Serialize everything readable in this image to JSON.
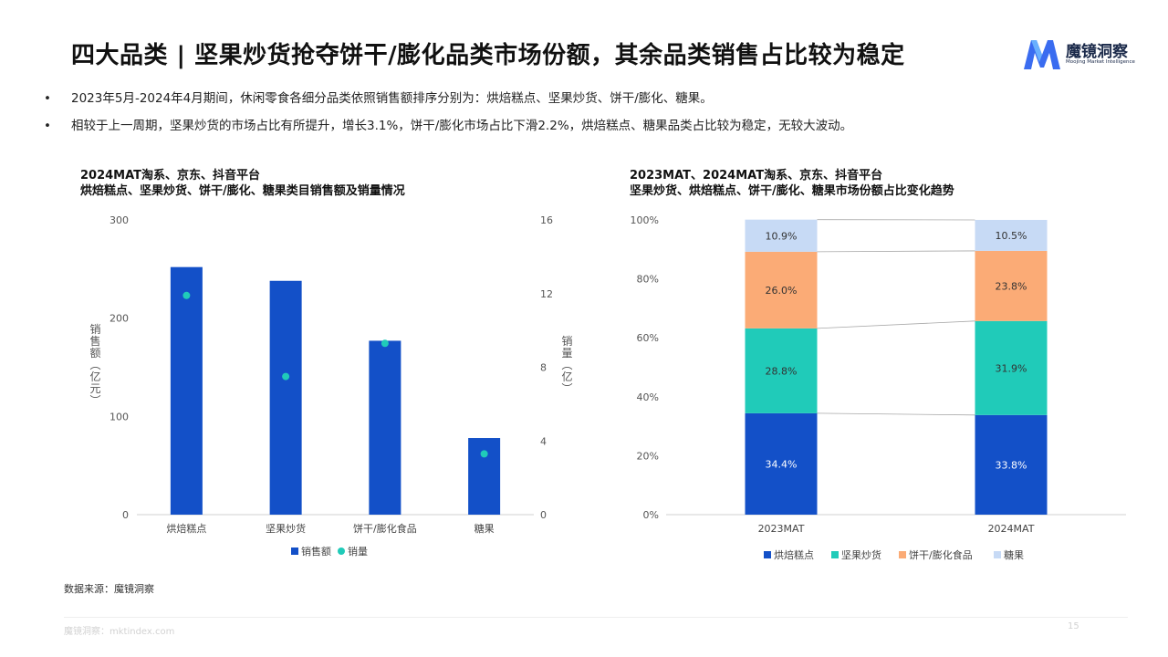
{
  "page": {
    "title": "四大品类 | 坚果炒货抢夺饼干/膨化品类市场份额，其余品类销售占比较为稳定",
    "logo_cn": "魔镜洞察",
    "logo_en": "Moojing Market Intelligence",
    "bullets": [
      "2023年5月-2024年4月期间，休闲零食各细分品类依照销售额排序分别为：烘焙糕点、坚果炒货、饼干/膨化、糖果。",
      "相较于上一周期，坚果炒货的市场占比有所提升，增长3.1%，饼干/膨化市场占比下滑2.2%，烘焙糕点、糖果品类占比较为稳定，无较大波动。"
    ],
    "bullet_marker": "•",
    "source": "数据来源：魔镜洞察",
    "footer": "魔镜洞察：mktindex.com",
    "page_number": "15",
    "colors": {
      "bar_blue": "#1350C8",
      "teal": "#20CBB9",
      "orange": "#FBAB76",
      "light_blue": "#C7DAF5",
      "logo_blue": "#3A6CF0"
    }
  },
  "chart_data": [
    {
      "type": "bar",
      "title_line1": "2024MAT淘系、京东、抖音平台",
      "title_line2": "烘焙糕点、坚果炒货、饼干/膨化、糖果类目销售额及销量情况",
      "categories": [
        "烘焙糕点",
        "坚果炒货",
        "饼干/膨化食品",
        "糖果"
      ],
      "series": [
        {
          "name": "销售额",
          "kind": "bar",
          "axis": "left",
          "values": [
            252,
            238,
            177,
            78
          ]
        },
        {
          "name": "销量",
          "kind": "scatter",
          "axis": "right",
          "values": [
            11.9,
            7.5,
            9.3,
            3.3
          ]
        }
      ],
      "ylabel_left": "销售额（亿元）",
      "ylabel_right": "销量（亿）",
      "ylim_left": [
        0,
        300
      ],
      "ylim_right": [
        0,
        16
      ],
      "yticks_left": [
        "0",
        "100",
        "200",
        "300"
      ],
      "yticks_right": [
        "0",
        "4",
        "8",
        "12",
        "16"
      ],
      "legend_position": "bottom",
      "grid": false
    },
    {
      "type": "bar",
      "stacked": true,
      "title_line1": "2023MAT、2024MAT淘系、京东、抖音平台",
      "title_line2": "坚果炒货、烘焙糕点、饼干/膨化、糖果市场份额占比变化趋势",
      "categories": [
        "2023MAT",
        "2024MAT"
      ],
      "series": [
        {
          "name": "烘焙糕点",
          "values": [
            34.4,
            33.8
          ],
          "labels": [
            "34.4%",
            "33.8%"
          ]
        },
        {
          "name": "坚果炒货",
          "values": [
            28.8,
            31.9
          ],
          "labels": [
            "28.8%",
            "31.9%"
          ]
        },
        {
          "name": "饼干/膨化食品",
          "values": [
            26.0,
            23.8
          ],
          "labels": [
            "26.0%",
            "23.8%"
          ]
        },
        {
          "name": "糖果",
          "values": [
            10.9,
            10.5
          ],
          "labels": [
            "10.9%",
            "10.5%"
          ]
        }
      ],
      "ylim": [
        0,
        100
      ],
      "yticks": [
        "0%",
        "20%",
        "40%",
        "60%",
        "80%",
        "100%"
      ],
      "legend_position": "bottom",
      "grid": false
    }
  ]
}
